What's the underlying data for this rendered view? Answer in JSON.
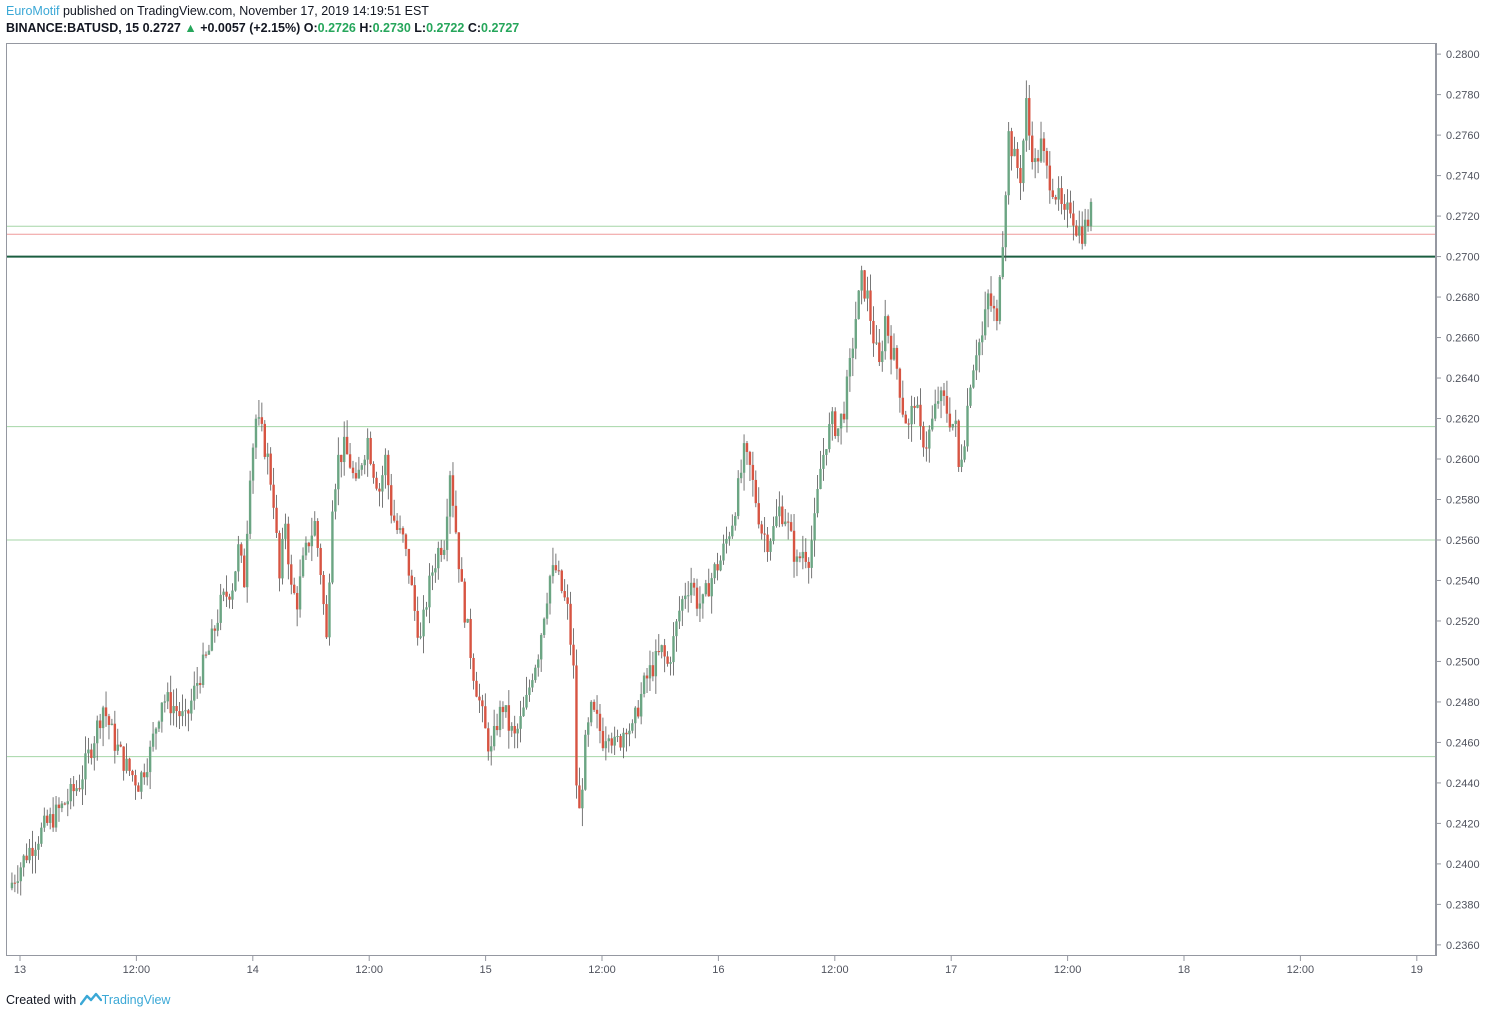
{
  "header": {
    "author": "EuroMotif",
    "published_text": " published on TradingView.com, November 17, 2019 14:19:51 EST",
    "symbol": "BINANCE:BATUSD, 15",
    "last": "0.2727",
    "arrow": "▲",
    "change": "+0.0057 (+2.15%)",
    "o_label": "O:",
    "o_value": "0.2726",
    "h_label": "H:",
    "h_value": "0.2730",
    "l_label": "L:",
    "l_value": "0.2722",
    "c_label": "C:",
    "c_value": "0.2727"
  },
  "footer": {
    "created_with": "Created with",
    "brand": "TradingView"
  },
  "colors": {
    "up": "#6ba583",
    "down": "#d75442",
    "hline": "#a5d6a7",
    "hline_red": "#ef9a9a",
    "hline_main": "#1b5e40",
    "axis_text": "#50535e"
  },
  "chart_data": {
    "type": "candlestick",
    "title": "",
    "ylim": [
      0.2355,
      0.2805
    ],
    "y_ticks": [
      "0.2800",
      "0.2780",
      "0.2760",
      "0.2740",
      "0.2720",
      "0.2700",
      "0.2680",
      "0.2660",
      "0.2640",
      "0.2620",
      "0.2600",
      "0.2580",
      "0.2560",
      "0.2540",
      "0.2520",
      "0.2500",
      "0.2480",
      "0.2460",
      "0.2440",
      "0.2420",
      "0.2400",
      "0.2380",
      "0.2360"
    ],
    "x_ticks": [
      "13",
      "12:00",
      "14",
      "12:00",
      "15",
      "12:00",
      "16",
      "12:00",
      "17",
      "12:00",
      "18",
      "12:00",
      "19"
    ],
    "horizontal_lines": [
      {
        "price": 0.27,
        "style": "thick",
        "color": "dark-green"
      },
      {
        "price": 0.2715,
        "style": "thin",
        "color": "green"
      },
      {
        "price": 0.2711,
        "style": "thin",
        "color": "red"
      },
      {
        "price": 0.2616,
        "style": "thin",
        "color": "green"
      },
      {
        "price": 0.256,
        "style": "thin",
        "color": "green"
      },
      {
        "price": 0.2453,
        "style": "thin",
        "color": "green"
      }
    ],
    "price_path": [
      [
        0,
        0.2388
      ],
      [
        6,
        0.2405
      ],
      [
        12,
        0.2418
      ],
      [
        18,
        0.2428
      ],
      [
        24,
        0.244
      ],
      [
        28,
        0.2458
      ],
      [
        32,
        0.2478
      ],
      [
        36,
        0.246
      ],
      [
        40,
        0.2448
      ],
      [
        44,
        0.244
      ],
      [
        48,
        0.2455
      ],
      [
        52,
        0.2482
      ],
      [
        56,
        0.2478
      ],
      [
        60,
        0.247
      ],
      [
        64,
        0.249
      ],
      [
        68,
        0.2505
      ],
      [
        72,
        0.2528
      ],
      [
        76,
        0.2538
      ],
      [
        78,
        0.2555
      ],
      [
        80,
        0.254
      ],
      [
        82,
        0.2595
      ],
      [
        84,
        0.262
      ],
      [
        86,
        0.2612
      ],
      [
        88,
        0.26
      ],
      [
        90,
        0.258
      ],
      [
        92,
        0.254
      ],
      [
        94,
        0.257
      ],
      [
        96,
        0.2535
      ],
      [
        98,
        0.253
      ],
      [
        100,
        0.2548
      ],
      [
        102,
        0.256
      ],
      [
        104,
        0.2568
      ],
      [
        106,
        0.2545
      ],
      [
        108,
        0.251
      ],
      [
        110,
        0.258
      ],
      [
        112,
        0.26
      ],
      [
        114,
        0.2605
      ],
      [
        116,
        0.2598
      ],
      [
        118,
        0.2585
      ],
      [
        120,
        0.26
      ],
      [
        122,
        0.261
      ],
      [
        124,
        0.2595
      ],
      [
        126,
        0.2585
      ],
      [
        128,
        0.26
      ],
      [
        130,
        0.2575
      ],
      [
        132,
        0.2565
      ],
      [
        134,
        0.256
      ],
      [
        136,
        0.2545
      ],
      [
        138,
        0.2525
      ],
      [
        140,
        0.251
      ],
      [
        142,
        0.253
      ],
      [
        144,
        0.2545
      ],
      [
        146,
        0.2555
      ],
      [
        148,
        0.256
      ],
      [
        150,
        0.2595
      ],
      [
        152,
        0.2565
      ],
      [
        154,
        0.2535
      ],
      [
        156,
        0.2515
      ],
      [
        158,
        0.2495
      ],
      [
        160,
        0.248
      ],
      [
        162,
        0.2465
      ],
      [
        164,
        0.2455
      ],
      [
        166,
        0.247
      ],
      [
        168,
        0.2478
      ],
      [
        170,
        0.2468
      ],
      [
        172,
        0.2462
      ],
      [
        174,
        0.247
      ],
      [
        176,
        0.248
      ],
      [
        178,
        0.2495
      ],
      [
        180,
        0.2505
      ],
      [
        182,
        0.2525
      ],
      [
        184,
        0.2542
      ],
      [
        186,
        0.2545
      ],
      [
        188,
        0.2535
      ],
      [
        190,
        0.2525
      ],
      [
        192,
        0.2495
      ],
      [
        193,
        0.244
      ],
      [
        194,
        0.2425
      ],
      [
        196,
        0.2458
      ],
      [
        198,
        0.2475
      ],
      [
        200,
        0.247
      ],
      [
        202,
        0.2462
      ],
      [
        204,
        0.2468
      ],
      [
        206,
        0.2458
      ],
      [
        208,
        0.2462
      ],
      [
        210,
        0.247
      ],
      [
        212,
        0.2465
      ],
      [
        214,
        0.2478
      ],
      [
        216,
        0.2488
      ],
      [
        218,
        0.2495
      ],
      [
        220,
        0.25
      ],
      [
        222,
        0.2505
      ],
      [
        224,
        0.2498
      ],
      [
        226,
        0.251
      ],
      [
        228,
        0.2525
      ],
      [
        230,
        0.2535
      ],
      [
        232,
        0.254
      ],
      [
        234,
        0.253
      ],
      [
        236,
        0.2528
      ],
      [
        238,
        0.2538
      ],
      [
        240,
        0.2545
      ],
      [
        242,
        0.255
      ],
      [
        244,
        0.256
      ],
      [
        246,
        0.257
      ],
      [
        248,
        0.2585
      ],
      [
        250,
        0.2602
      ],
      [
        252,
        0.2595
      ],
      [
        254,
        0.258
      ],
      [
        256,
        0.2565
      ],
      [
        258,
        0.256
      ],
      [
        260,
        0.2565
      ],
      [
        262,
        0.2575
      ],
      [
        264,
        0.2572
      ],
      [
        266,
        0.256
      ],
      [
        268,
        0.2548
      ],
      [
        270,
        0.2555
      ],
      [
        272,
        0.2552
      ],
      [
        274,
        0.2568
      ],
      [
        276,
        0.2595
      ],
      [
        278,
        0.261
      ],
      [
        280,
        0.2618
      ],
      [
        282,
        0.2615
      ],
      [
        284,
        0.2625
      ],
      [
        286,
        0.2645
      ],
      [
        288,
        0.267
      ],
      [
        290,
        0.2688
      ],
      [
        292,
        0.268
      ],
      [
        294,
        0.266
      ],
      [
        296,
        0.2645
      ],
      [
        298,
        0.267
      ],
      [
        300,
        0.2655
      ],
      [
        302,
        0.2645
      ],
      [
        304,
        0.2625
      ],
      [
        306,
        0.2615
      ],
      [
        308,
        0.263
      ],
      [
        310,
        0.2612
      ],
      [
        312,
        0.2608
      ],
      [
        314,
        0.2618
      ],
      [
        316,
        0.263
      ],
      [
        318,
        0.2628
      ],
      [
        320,
        0.262
      ],
      [
        322,
        0.2615
      ],
      [
        323,
        0.2595
      ],
      [
        325,
        0.2612
      ],
      [
        327,
        0.264
      ],
      [
        329,
        0.2655
      ],
      [
        331,
        0.266
      ],
      [
        333,
        0.268
      ],
      [
        335,
        0.2672
      ],
      [
        336,
        0.2665
      ],
      [
        337,
        0.2695
      ],
      [
        338,
        0.271
      ],
      [
        339,
        0.2735
      ],
      [
        340,
        0.276
      ],
      [
        342,
        0.2748
      ],
      [
        344,
        0.274
      ],
      [
        346,
        0.2775
      ],
      [
        347,
        0.276
      ],
      [
        349,
        0.2745
      ],
      [
        351,
        0.2755
      ],
      [
        353,
        0.2742
      ],
      [
        355,
        0.2735
      ],
      [
        357,
        0.2728
      ],
      [
        359,
        0.2718
      ],
      [
        361,
        0.2725
      ],
      [
        363,
        0.2715
      ],
      [
        365,
        0.2712
      ],
      [
        367,
        0.2718
      ],
      [
        368,
        0.2727
      ]
    ],
    "last_price": 0.2727
  }
}
